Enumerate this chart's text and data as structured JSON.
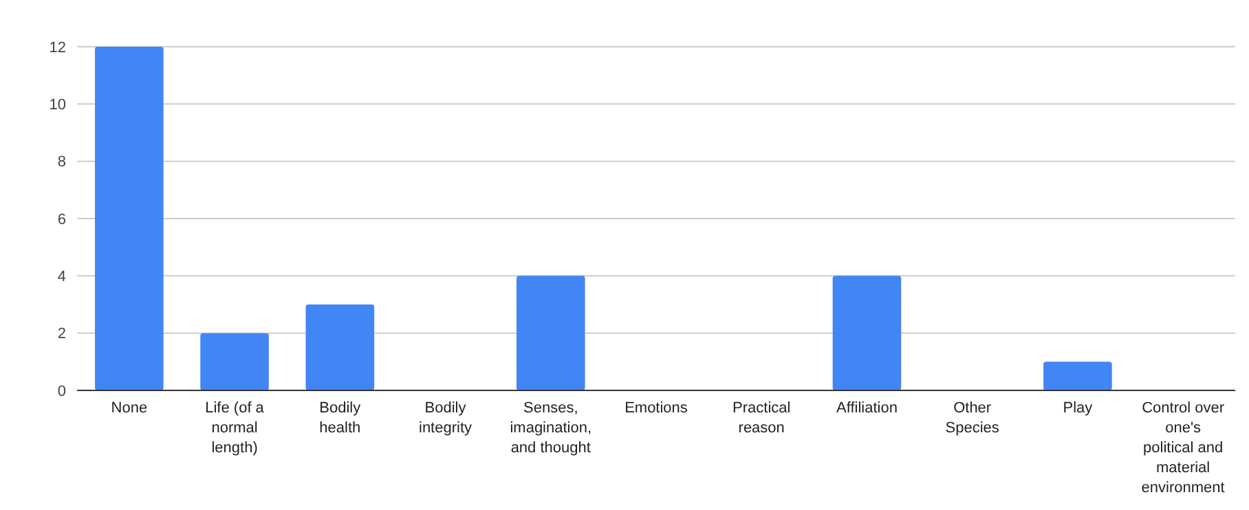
{
  "chart_data": {
    "type": "bar",
    "categories": [
      "None",
      "Life (of a\nnormal\nlength)",
      "Bodily\nhealth",
      "Bodily\nintegrity",
      "Senses,\nimagination,\nand thought",
      "Emotions",
      "Practical\nreason",
      "Affiliation",
      "Other\nSpecies",
      "Play",
      "Control over\none's\npolitical and\nmaterial\nenvironment"
    ],
    "values": [
      12,
      2,
      3,
      0,
      4,
      0,
      0,
      4,
      0,
      1,
      0
    ],
    "color": "#4285f4",
    "ylim": [
      0,
      12
    ],
    "yticks": [
      0,
      2,
      4,
      6,
      8,
      10,
      12
    ],
    "grid": true
  }
}
